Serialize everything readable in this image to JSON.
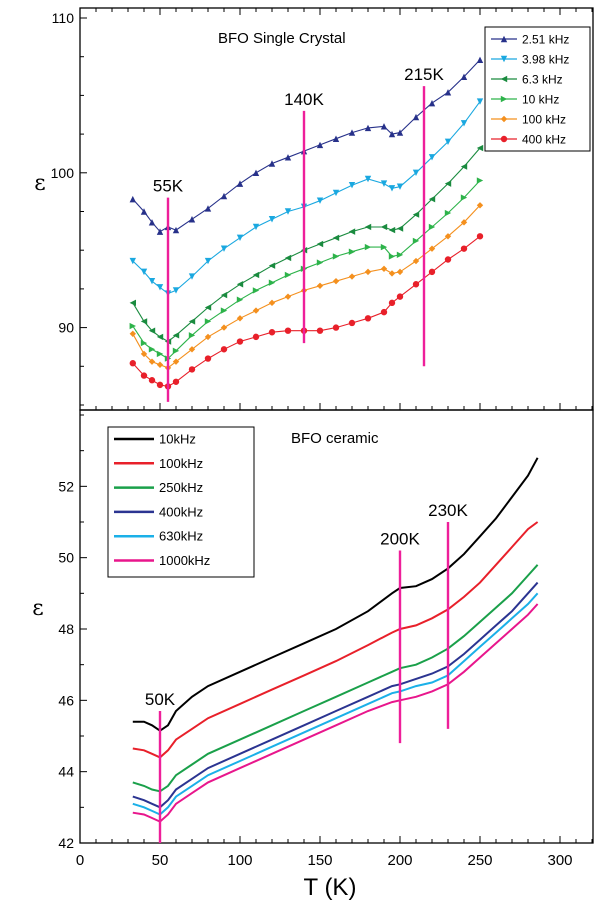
{
  "colors": {
    "axis": "#000000",
    "marker_line": "#ee1f9a",
    "background": "#ffffff"
  },
  "chart_data": [
    {
      "type": "line",
      "title": "BFO Single Crystal",
      "xlabel": "",
      "ylabel": "ε",
      "xlim": [
        0,
        320
      ],
      "ylim": [
        85,
        110
      ],
      "yticks": [
        "90",
        "100",
        "110"
      ],
      "markers": "symbols",
      "legend_position": "top-right",
      "series": [
        {
          "name": "2.51 kHz",
          "color": "#27318a",
          "marker": "triangle-up",
          "x": [
            33,
            40,
            45,
            50,
            55,
            60,
            70,
            80,
            90,
            100,
            110,
            120,
            130,
            140,
            150,
            160,
            170,
            180,
            190,
            195,
            200,
            210,
            220,
            230,
            240,
            250
          ],
          "y": [
            98.3,
            97.5,
            96.8,
            96.2,
            96.5,
            96.3,
            97.0,
            97.7,
            98.5,
            99.3,
            100.0,
            100.6,
            101.0,
            101.4,
            101.8,
            102.2,
            102.6,
            102.9,
            103.0,
            102.5,
            102.6,
            103.6,
            104.5,
            105.2,
            106.2,
            107.3
          ]
        },
        {
          "name": "3.98 kHz",
          "color": "#1aa8e0",
          "marker": "triangle-down",
          "x": [
            33,
            40,
            45,
            50,
            55,
            60,
            70,
            80,
            90,
            100,
            110,
            120,
            130,
            140,
            150,
            160,
            170,
            180,
            190,
            195,
            200,
            210,
            220,
            230,
            240,
            250
          ],
          "y": [
            94.3,
            93.6,
            93.0,
            92.6,
            92.2,
            92.4,
            93.3,
            94.3,
            95.1,
            95.8,
            96.5,
            97.0,
            97.5,
            97.8,
            98.2,
            98.7,
            99.2,
            99.6,
            99.3,
            99.0,
            99.1,
            100.0,
            101.0,
            102.0,
            103.2,
            104.6
          ]
        },
        {
          "name": "6.3 kHz",
          "color": "#1a8b3f",
          "marker": "triangle-left",
          "x": [
            33,
            40,
            45,
            50,
            55,
            60,
            70,
            80,
            90,
            100,
            110,
            120,
            130,
            140,
            150,
            160,
            170,
            180,
            190,
            195,
            200,
            210,
            220,
            230,
            240,
            250
          ],
          "y": [
            91.6,
            90.4,
            89.8,
            89.4,
            89.1,
            89.5,
            90.4,
            91.3,
            92.1,
            92.8,
            93.4,
            94.0,
            94.5,
            95.0,
            95.4,
            95.8,
            96.2,
            96.5,
            96.5,
            96.3,
            96.4,
            97.3,
            98.3,
            99.3,
            100.4,
            101.6
          ]
        },
        {
          "name": "10 kHz",
          "color": "#2db34a",
          "marker": "triangle-right",
          "x": [
            33,
            40,
            45,
            50,
            55,
            60,
            70,
            80,
            90,
            100,
            110,
            120,
            130,
            140,
            150,
            160,
            170,
            180,
            190,
            195,
            200,
            210,
            220,
            230,
            240,
            250
          ],
          "y": [
            90.1,
            89.0,
            88.6,
            88.3,
            88.0,
            88.5,
            89.5,
            90.4,
            91.1,
            91.8,
            92.4,
            92.9,
            93.4,
            93.8,
            94.2,
            94.6,
            94.9,
            95.2,
            95.2,
            94.6,
            94.7,
            95.6,
            96.5,
            97.4,
            98.4,
            99.5
          ]
        },
        {
          "name": "100 kHz",
          "color": "#f4901e",
          "marker": "diamond",
          "x": [
            33,
            40,
            45,
            50,
            55,
            60,
            70,
            80,
            90,
            100,
            110,
            120,
            130,
            140,
            150,
            160,
            170,
            180,
            190,
            195,
            200,
            210,
            220,
            230,
            240,
            250
          ],
          "y": [
            89.6,
            88.3,
            87.8,
            87.6,
            87.4,
            87.8,
            88.6,
            89.4,
            90.0,
            90.6,
            91.1,
            91.6,
            92.0,
            92.4,
            92.7,
            93.0,
            93.3,
            93.6,
            93.8,
            93.5,
            93.6,
            94.3,
            95.1,
            95.9,
            96.8,
            97.9
          ]
        },
        {
          "name": "400 kHz",
          "color": "#e8202a",
          "marker": "circle",
          "x": [
            33,
            40,
            45,
            50,
            55,
            60,
            70,
            80,
            90,
            100,
            110,
            120,
            130,
            140,
            150,
            160,
            170,
            180,
            190,
            195,
            200,
            210,
            220,
            230,
            240,
            250
          ],
          "y": [
            87.7,
            86.9,
            86.6,
            86.3,
            86.2,
            86.5,
            87.3,
            88.0,
            88.6,
            89.1,
            89.4,
            89.7,
            89.8,
            89.8,
            89.8,
            90.0,
            90.3,
            90.6,
            91.0,
            91.6,
            92.0,
            92.8,
            93.6,
            94.4,
            95.1,
            95.9
          ]
        }
      ],
      "annotations": [
        {
          "text": "55K",
          "x": 55,
          "y_from": 85.2,
          "y_to": 98.4
        },
        {
          "text": "140K",
          "x": 140,
          "y_from": 89.0,
          "y_to": 104.0
        },
        {
          "text": "215K",
          "x": 215,
          "y_from": 87.5,
          "y_to": 105.6
        }
      ]
    },
    {
      "type": "line",
      "title": "BFO ceramic",
      "xlabel": "T (K)",
      "ylabel": "ε",
      "xlim": [
        0,
        320
      ],
      "ylim": [
        42,
        54
      ],
      "xticks": [
        "0",
        "50",
        "100",
        "150",
        "200",
        "250",
        "300"
      ],
      "yticks": [
        "42",
        "44",
        "46",
        "48",
        "50",
        "52"
      ],
      "markers": "none",
      "legend_position": "top-left",
      "series": [
        {
          "name": "10kHz",
          "color": "#000000",
          "x": [
            33,
            40,
            45,
            50,
            55,
            60,
            70,
            80,
            100,
            120,
            140,
            160,
            180,
            195,
            200,
            210,
            220,
            230,
            240,
            250,
            260,
            270,
            280,
            286
          ],
          "y": [
            45.4,
            45.4,
            45.3,
            45.15,
            45.3,
            45.7,
            46.1,
            46.4,
            46.8,
            47.2,
            47.6,
            48.0,
            48.5,
            49.0,
            49.15,
            49.2,
            49.4,
            49.7,
            50.1,
            50.6,
            51.1,
            51.7,
            52.3,
            52.8
          ]
        },
        {
          "name": "100kHz",
          "color": "#e8202a",
          "x": [
            33,
            40,
            45,
            50,
            55,
            60,
            70,
            80,
            100,
            120,
            140,
            160,
            180,
            195,
            200,
            210,
            220,
            230,
            240,
            250,
            260,
            270,
            280,
            286
          ],
          "y": [
            44.65,
            44.6,
            44.5,
            44.4,
            44.6,
            44.9,
            45.2,
            45.5,
            45.9,
            46.3,
            46.7,
            47.1,
            47.55,
            47.9,
            48.0,
            48.1,
            48.3,
            48.55,
            48.9,
            49.3,
            49.8,
            50.3,
            50.8,
            51.0
          ]
        },
        {
          "name": "250kHz",
          "color": "#1aa04a",
          "x": [
            33,
            40,
            45,
            50,
            55,
            60,
            70,
            80,
            100,
            120,
            140,
            160,
            180,
            195,
            200,
            210,
            220,
            230,
            240,
            250,
            260,
            270,
            280,
            286
          ],
          "y": [
            43.7,
            43.6,
            43.5,
            43.45,
            43.6,
            43.9,
            44.2,
            44.5,
            44.9,
            45.3,
            45.7,
            46.1,
            46.5,
            46.8,
            46.9,
            47.0,
            47.2,
            47.45,
            47.8,
            48.2,
            48.6,
            49.0,
            49.5,
            49.8
          ]
        },
        {
          "name": "400kHz",
          "color": "#2b3491",
          "x": [
            33,
            40,
            45,
            50,
            55,
            60,
            70,
            80,
            100,
            120,
            140,
            160,
            180,
            195,
            200,
            210,
            220,
            230,
            240,
            250,
            260,
            270,
            280,
            286
          ],
          "y": [
            43.3,
            43.2,
            43.1,
            43.0,
            43.2,
            43.5,
            43.8,
            44.1,
            44.5,
            44.9,
            45.3,
            45.7,
            46.1,
            46.4,
            46.45,
            46.6,
            46.75,
            46.95,
            47.3,
            47.7,
            48.1,
            48.5,
            49.0,
            49.3
          ]
        },
        {
          "name": "630kHz",
          "color": "#1bb0e8",
          "x": [
            33,
            40,
            45,
            50,
            55,
            60,
            70,
            80,
            100,
            120,
            140,
            160,
            180,
            195,
            200,
            210,
            220,
            230,
            240,
            250,
            260,
            270,
            280,
            286
          ],
          "y": [
            43.1,
            43.0,
            42.9,
            42.8,
            43.0,
            43.3,
            43.6,
            43.9,
            44.3,
            44.7,
            45.1,
            45.5,
            45.9,
            46.2,
            46.25,
            46.4,
            46.5,
            46.7,
            47.1,
            47.5,
            47.9,
            48.3,
            48.7,
            49.0
          ]
        },
        {
          "name": "1000kHz",
          "color": "#e8168c",
          "x": [
            33,
            40,
            45,
            50,
            55,
            60,
            70,
            80,
            100,
            120,
            140,
            160,
            180,
            195,
            200,
            210,
            220,
            230,
            240,
            250,
            260,
            270,
            280,
            286
          ],
          "y": [
            42.85,
            42.8,
            42.7,
            42.6,
            42.8,
            43.1,
            43.4,
            43.7,
            44.1,
            44.5,
            44.9,
            45.3,
            45.7,
            45.95,
            46.0,
            46.1,
            46.25,
            46.45,
            46.8,
            47.2,
            47.6,
            48.0,
            48.4,
            48.7
          ]
        }
      ],
      "annotations": [
        {
          "text": "50K",
          "x": 50,
          "y_from": 42.0,
          "y_to": 45.7
        },
        {
          "text": "200K",
          "x": 200,
          "y_from": 44.8,
          "y_to": 50.2
        },
        {
          "text": "230K",
          "x": 230,
          "y_from": 45.2,
          "y_to": 51.0
        }
      ]
    }
  ]
}
